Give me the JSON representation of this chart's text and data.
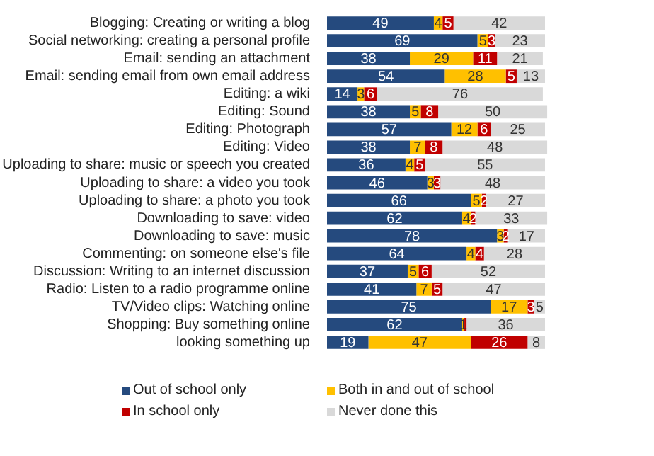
{
  "chart_data": {
    "type": "bar",
    "orientation": "horizontal",
    "stacked": true,
    "legend": "bottom",
    "grid": false,
    "tick_labels": "y",
    "categories": [
      "Blogging: Creating or writing a blog",
      "Social networking: creating a personal profile",
      "Email: sending an attachment",
      "Email: sending email from own email address",
      "Editing: a wiki",
      "Editing: Sound",
      "Editing: Photograph",
      "Editing: Video",
      "Uploading to share: music or speech you created",
      "Uploading to share: a video you took",
      "Uploading to share: a photo you took",
      "Downloading to save: video",
      "Downloading to save: music",
      "Commenting: on someone else's file",
      "Discussion: Writing to an internet discussion",
      "Radio: Listen to a radio programme online",
      "TV/Video clips: Watching online",
      "Shopping: Buy something online",
      "looking something up"
    ],
    "series": [
      {
        "name": "Out of school only",
        "color": "#254a7e",
        "values": [
          49,
          69,
          38,
          54,
          14,
          38,
          57,
          38,
          36,
          46,
          66,
          62,
          78,
          64,
          37,
          41,
          75,
          62,
          19
        ],
        "value_labels": [
          "49",
          "69",
          "38",
          "54",
          "14",
          "38",
          "57",
          "38",
          "36",
          "46",
          "66",
          "62",
          "78",
          "64",
          "37",
          "41",
          "75",
          "62",
          "19"
        ]
      },
      {
        "name": "Both in and out of school",
        "color": "#ffc000",
        "values": [
          4,
          5,
          29,
          28,
          3,
          5,
          12,
          7,
          4,
          3,
          5,
          4,
          3,
          4,
          5,
          7,
          17,
          1,
          47
        ],
        "value_labels": [
          "4",
          "5",
          "29",
          "28",
          "3",
          "5",
          "12",
          "7",
          "4",
          "3",
          "5",
          "4",
          "3",
          "4",
          "5",
          "7",
          "17",
          "1",
          "47"
        ]
      },
      {
        "name": "In school only",
        "color": "#c00000",
        "values": [
          5,
          3,
          11,
          5,
          6,
          8,
          6,
          8,
          5,
          3,
          2,
          2,
          2,
          4,
          6,
          5,
          3,
          1,
          26
        ],
        "value_labels": [
          "5",
          "3",
          "11",
          "5",
          "6",
          "8",
          "6",
          "8",
          "5",
          "3",
          "2",
          "2",
          "2",
          "4",
          "6",
          "5",
          "3",
          null,
          "26"
        ]
      },
      {
        "name": "Never done this",
        "color": "#d9d9d9",
        "values": [
          42,
          23,
          21,
          13,
          76,
          50,
          25,
          48,
          55,
          48,
          27,
          33,
          17,
          28,
          52,
          47,
          5,
          36,
          8
        ],
        "value_labels": [
          "42",
          "23",
          "21",
          "13",
          "76",
          "50",
          "25",
          "48",
          "55",
          "48",
          "27",
          "33",
          "17",
          "28",
          "52",
          "47",
          "5",
          "36",
          "8"
        ]
      }
    ]
  }
}
